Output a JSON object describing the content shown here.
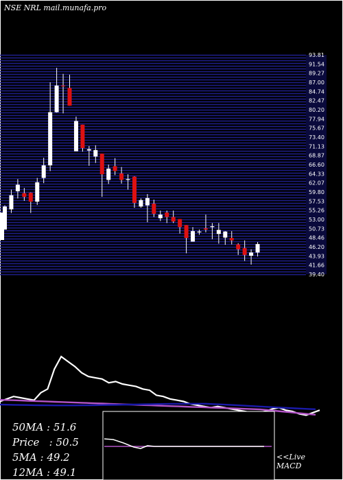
{
  "header": {
    "title": "NSE NRL mail.munafa.pro"
  },
  "price_axis": {
    "labels": [
      "93.81",
      "91.54",
      "89.27",
      "87.00",
      "84.74",
      "82.47",
      "80.20",
      "77.94",
      "75.67",
      "73.40",
      "71.13",
      "68.87",
      "66.60",
      "64.33",
      "62.07",
      "59.80",
      "57.53",
      "55.26",
      "53.00",
      "50.73",
      "48.46",
      "46.20",
      "43.93",
      "41.66",
      "39.40"
    ]
  },
  "stats": {
    "ma50": "50MA : 51.6",
    "price": "Price   : 50.5",
    "ma5": "5MA : 49.2",
    "ma12": "12MA : 49.1"
  },
  "macd_label": {
    "line1": "<<Live",
    "line2": "MACD"
  },
  "colors": {
    "background": "#000000",
    "grid_line": "#1e1e8c",
    "bull_candle": "#ffffff",
    "bear_candle": "#dd1111",
    "indicator_line": "#ffffff",
    "ma_purple": "#b455c8",
    "ma_blue": "#1a1aaa"
  },
  "chart_data": {
    "type": "candlestick",
    "title": "NSE NRL mail.munafa.pro",
    "ylim": [
      39.4,
      93.81
    ],
    "candles": [
      {
        "o": 50.5,
        "h": 56.5,
        "l": 50.5,
        "c": 56.2
      },
      {
        "o": 55.5,
        "h": 60.4,
        "l": 54.6,
        "c": 59.0
      },
      {
        "o": 60.0,
        "h": 63.0,
        "l": 58.2,
        "c": 61.6
      },
      {
        "o": 59.5,
        "h": 60.8,
        "l": 57.6,
        "c": 58.6
      },
      {
        "o": 59.6,
        "h": 59.7,
        "l": 54.6,
        "c": 57.4
      },
      {
        "o": 57.4,
        "h": 63.3,
        "l": 56.6,
        "c": 62.2
      },
      {
        "o": 63.3,
        "h": 68.3,
        "l": 62.0,
        "c": 66.4
      },
      {
        "o": 66.4,
        "h": 87.0,
        "l": 65.0,
        "c": 79.6
      },
      {
        "o": 79.6,
        "h": 90.6,
        "l": 79.5,
        "c": 86.2
      },
      {
        "o": 86.2,
        "h": 89.1,
        "l": 79.3,
        "c": 86.0
      },
      {
        "o": 85.6,
        "h": 88.9,
        "l": 81.2,
        "c": 81.2
      },
      {
        "o": 69.9,
        "h": 78.5,
        "l": 69.9,
        "c": 77.4
      },
      {
        "o": 76.5,
        "h": 76.5,
        "l": 69.8,
        "c": 70.7
      },
      {
        "o": 70.1,
        "h": 71.2,
        "l": 66.3,
        "c": 70.4
      },
      {
        "o": 68.6,
        "h": 71.4,
        "l": 67.0,
        "c": 70.2
      },
      {
        "o": 69.3,
        "h": 69.3,
        "l": 58.6,
        "c": 64.2
      },
      {
        "o": 62.8,
        "h": 66.6,
        "l": 61.8,
        "c": 65.6
      },
      {
        "o": 66.2,
        "h": 68.2,
        "l": 64.0,
        "c": 65.0
      },
      {
        "o": 64.4,
        "h": 66.0,
        "l": 61.9,
        "c": 62.8
      },
      {
        "o": 62.8,
        "h": 64.2,
        "l": 60.4,
        "c": 63.0
      },
      {
        "o": 63.6,
        "h": 63.7,
        "l": 55.9,
        "c": 57.1
      },
      {
        "o": 56.2,
        "h": 58.2,
        "l": 55.9,
        "c": 57.8
      },
      {
        "o": 56.5,
        "h": 59.3,
        "l": 52.3,
        "c": 58.3
      },
      {
        "o": 56.9,
        "h": 57.9,
        "l": 53.6,
        "c": 54.4
      },
      {
        "o": 53.3,
        "h": 55.2,
        "l": 52.6,
        "c": 54.2
      },
      {
        "o": 54.7,
        "h": 55.2,
        "l": 52.1,
        "c": 53.6
      },
      {
        "o": 53.6,
        "h": 55.2,
        "l": 52.1,
        "c": 52.5
      },
      {
        "o": 53.1,
        "h": 53.1,
        "l": 49.5,
        "c": 51.1
      },
      {
        "o": 51.6,
        "h": 51.6,
        "l": 44.6,
        "c": 48.4
      },
      {
        "o": 47.5,
        "h": 51.1,
        "l": 47.5,
        "c": 50.1
      },
      {
        "o": 49.8,
        "h": 50.5,
        "l": 49.2,
        "c": 50.0
      },
      {
        "o": 50.8,
        "h": 54.2,
        "l": 49.8,
        "c": 50.5
      },
      {
        "o": 51.1,
        "h": 52.1,
        "l": 48.1,
        "c": 51.3
      },
      {
        "o": 49.4,
        "h": 52.1,
        "l": 47.0,
        "c": 50.4
      },
      {
        "o": 48.5,
        "h": 50.1,
        "l": 46.7,
        "c": 50.0
      },
      {
        "o": 48.4,
        "h": 50.1,
        "l": 46.8,
        "c": 47.8
      },
      {
        "o": 46.8,
        "h": 47.1,
        "l": 44.2,
        "c": 45.6
      },
      {
        "o": 45.9,
        "h": 47.8,
        "l": 42.7,
        "c": 44.2
      },
      {
        "o": 44.0,
        "h": 45.6,
        "l": 41.8,
        "c": 44.8
      },
      {
        "o": 44.8,
        "h": 47.4,
        "l": 43.8,
        "c": 46.9
      }
    ]
  }
}
